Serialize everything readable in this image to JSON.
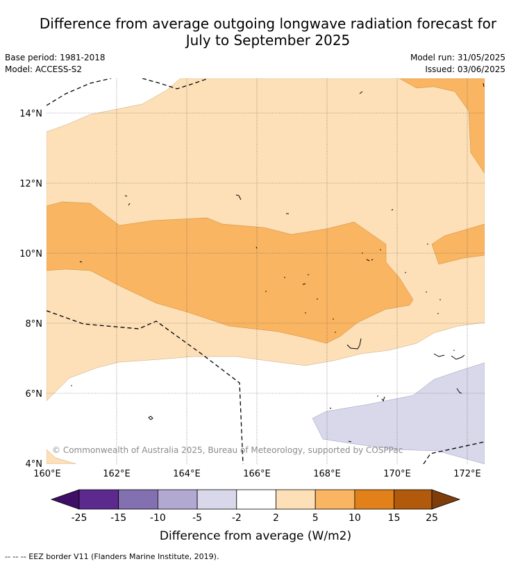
{
  "title": {
    "line1": "Difference from average outgoing longwave radiation forecast for",
    "line2": "July to September 2025"
  },
  "meta": {
    "base_period": "Base period: 1981-2018",
    "model": "Model: ACCESS-S2",
    "model_run": "Model run: 31/05/2025",
    "issued": "Issued: 03/06/2025"
  },
  "map": {
    "lat_labels": [
      "14°N",
      "12°N",
      "10°N",
      "8°N",
      "6°N",
      "4°N"
    ],
    "lon_labels": [
      "160°E",
      "162°E",
      "164°E",
      "166°E",
      "168°E",
      "170°E",
      "172°E"
    ],
    "copyright": "© Commonwealth of Australia 2025, Bureau of Meteorology, supported by COSPPac"
  },
  "colorbar": {
    "tick_labels": [
      "-25",
      "-15",
      "-10",
      "-5",
      "-2",
      "2",
      "5",
      "10",
      "15",
      "25"
    ],
    "colors": [
      "#3f0e66",
      "#5c2a8f",
      "#8270b0",
      "#b2a9d3",
      "#d8d8ea",
      "#ffffff",
      "#fde0b8",
      "#f9b561",
      "#e2811a",
      "#b15a0b",
      "#7f3d0a"
    ],
    "title": "Difference from average (W/m2)"
  },
  "footnote": "--  --  -- EEZ border V11 (Flanders Marine Institute, 2019)."
}
